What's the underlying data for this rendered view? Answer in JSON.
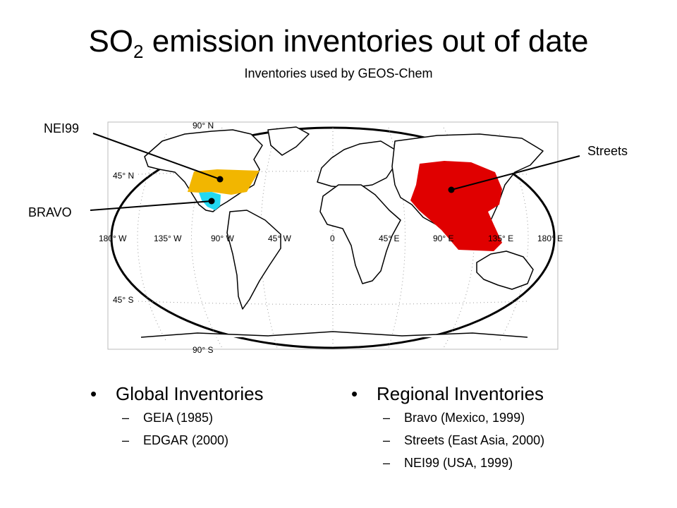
{
  "title": {
    "main": "SO",
    "sub": "2",
    "rest": " emission inventories out of date"
  },
  "subtitle": "Inventories used by GEOS-Chem",
  "map": {
    "callouts": {
      "nei99": "NEI99",
      "bravo": "BRAVO",
      "streets": "Streets"
    },
    "lat_labels": [
      "90° N",
      "45° N",
      "45° S",
      "90° S"
    ],
    "lon_labels": [
      "180° W",
      "135° W",
      "90° W",
      "45° W",
      "0",
      "45° E",
      "90° E",
      "135° E",
      "180° E"
    ],
    "regions": [
      {
        "name": "NEI99",
        "color": "#f2b600"
      },
      {
        "name": "BRAVO",
        "color": "#22d8f0"
      },
      {
        "name": "Streets",
        "color": "#e00000"
      }
    ]
  },
  "bullet": "•",
  "dash": "–",
  "global": {
    "heading": "Global Inventories",
    "items": [
      "GEIA (1985)",
      "EDGAR (2000)"
    ]
  },
  "regional": {
    "heading": "Regional Inventories",
    "items": [
      "Bravo (Mexico, 1999)",
      "Streets (East Asia, 2000)",
      "NEI99 (USA, 1999)"
    ]
  }
}
